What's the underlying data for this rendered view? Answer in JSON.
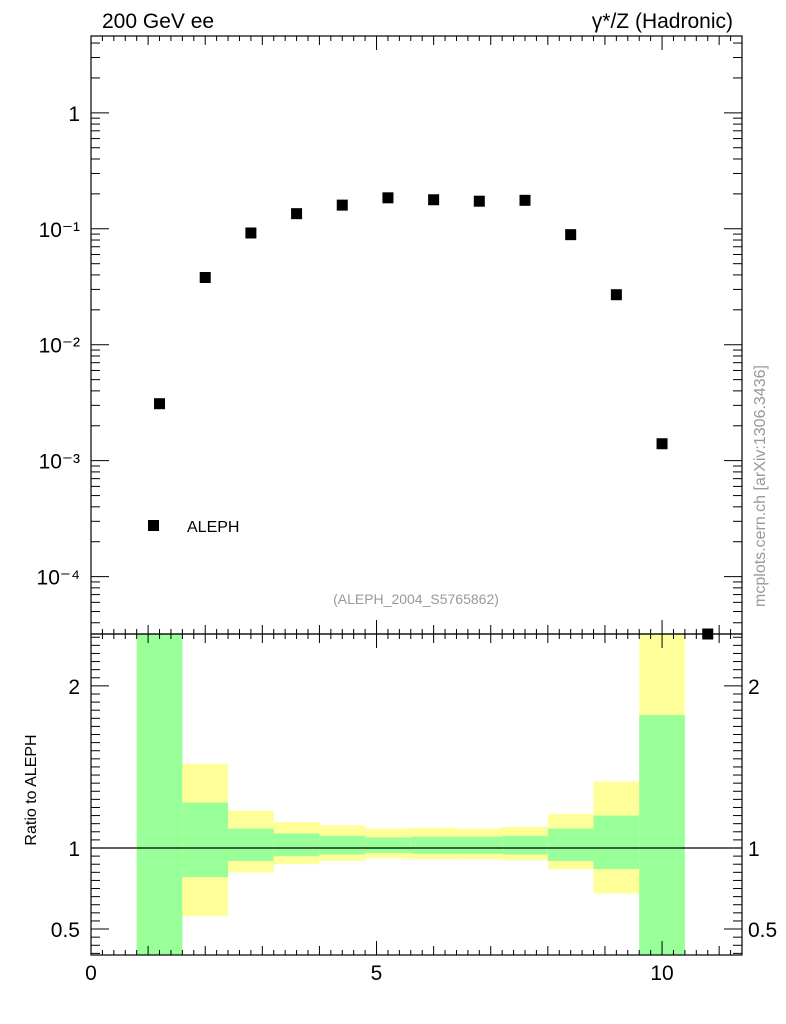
{
  "header": {
    "left": "200 GeV ee",
    "right": "γ*/Z (Hadronic)"
  },
  "side_label": "mcplots.cern.ch [arXiv:1306.3436]",
  "analysis_id": "(ALEPH_2004_S5765862)",
  "chart_data": [
    {
      "type": "scatter",
      "panel": "main",
      "yscale": "log",
      "xlim": [
        0,
        11.4
      ],
      "ylim": [
        3.2e-05,
        4.6
      ],
      "ytick_labels": [
        "10⁻⁴",
        "10⁻³",
        "10⁻²",
        "10⁻¹",
        "1"
      ],
      "legend": [
        "ALEPH"
      ],
      "legend_position": "bottom-left",
      "series": [
        {
          "name": "ALEPH",
          "color": "#000000",
          "marker": "square",
          "x": [
            1.2,
            2.0,
            2.8,
            3.6,
            4.4,
            5.2,
            6.0,
            6.8,
            7.6,
            8.4,
            9.2,
            10.0,
            10.8
          ],
          "y": [
            0.0031,
            0.038,
            0.092,
            0.135,
            0.16,
            0.185,
            0.178,
            0.173,
            0.176,
            0.089,
            0.027,
            0.0014,
            3.2e-05
          ]
        }
      ]
    },
    {
      "type": "area",
      "panel": "ratio",
      "ylabel": "Ratio to ALEPH",
      "xlim": [
        0,
        11.4
      ],
      "ylim": [
        0.34,
        2.32
      ],
      "xtick_labels": [
        "0",
        "5",
        "10"
      ],
      "ytick_labels": [
        "0.5",
        "1",
        "2"
      ],
      "reference_line": 1,
      "colors": {
        "inner": "#99ff99",
        "outer": "#ffff99"
      },
      "bins": {
        "x_low": [
          0.8,
          1.6,
          2.4,
          3.2,
          4.0,
          4.8,
          5.6,
          6.4,
          7.2,
          8.0,
          8.8,
          9.6
        ],
        "x_high": [
          1.6,
          2.4,
          3.2,
          4.0,
          4.8,
          5.6,
          6.4,
          7.2,
          8.0,
          8.8,
          9.6,
          10.4
        ],
        "inner_low": [
          0.34,
          0.82,
          0.92,
          0.95,
          0.96,
          0.97,
          0.965,
          0.965,
          0.96,
          0.92,
          0.87,
          0.34
        ],
        "inner_high": [
          2.32,
          1.28,
          1.12,
          1.09,
          1.075,
          1.065,
          1.07,
          1.07,
          1.075,
          1.12,
          1.2,
          1.82
        ],
        "outer_low": [
          0.34,
          0.58,
          0.85,
          0.9,
          0.92,
          0.935,
          0.93,
          0.93,
          0.925,
          0.87,
          0.72,
          0.34
        ],
        "outer_high": [
          2.32,
          1.52,
          1.23,
          1.16,
          1.14,
          1.12,
          1.125,
          1.12,
          1.13,
          1.21,
          1.41,
          2.32
        ]
      }
    }
  ]
}
